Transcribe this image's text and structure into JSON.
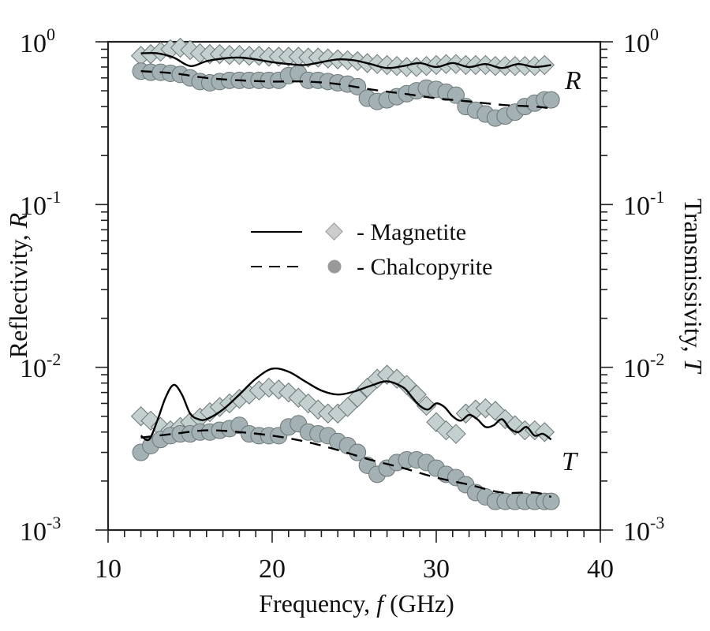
{
  "chart_data": {
    "type": "scatter",
    "title": "",
    "xlabel": "Frequency,  f (GHz)",
    "xlabel_parts": {
      "prefix": "Frequency,  ",
      "var": "f",
      "suffix": " (GHz)"
    },
    "ylabel_left": "Reflectivity, R",
    "ylabel_left_parts": {
      "prefix": "Reflectivity, ",
      "var": "R"
    },
    "ylabel_right": "Transmissivity, T",
    "ylabel_right_parts": {
      "prefix": "Transmissivity, ",
      "var": "T"
    },
    "xlim": [
      10,
      40
    ],
    "ylim": [
      0.001,
      1
    ],
    "yscale": "log",
    "x_ticks": [
      10,
      20,
      30,
      40
    ],
    "x_tick_labels": [
      "10",
      "20",
      "30",
      "40"
    ],
    "y_ticks": [
      {
        "base": "10",
        "exp": "-3"
      },
      {
        "base": "10",
        "exp": "-2"
      },
      {
        "base": "10",
        "exp": "-1"
      },
      {
        "base": "10",
        "exp": "0"
      }
    ],
    "grid": false,
    "annotations": [
      {
        "text": "R",
        "x": 38.6,
        "y": 0.55
      },
      {
        "text": "T",
        "x": 38.6,
        "y": 0.0018
      }
    ],
    "legend": {
      "placement": "center",
      "entries": [
        {
          "label": "- Magnetite",
          "line": "solid",
          "marker": "diamond"
        },
        {
          "label": "- Chalcopyrite",
          "line": "dashed",
          "marker": "circle"
        }
      ]
    },
    "colors": {
      "diamond_fill": "#c3d0cf",
      "circle_fill": "#a3b1b5",
      "marker_stroke": "#6b7677",
      "legend_diamond": "#cccccc",
      "legend_circle": "#999999",
      "line": "#000000"
    },
    "series": [
      {
        "name": "Magnetite R (measured)",
        "marker": "diamond",
        "x": [
          12.0,
          12.6,
          13.2,
          13.8,
          14.4,
          15.0,
          15.6,
          16.2,
          16.8,
          17.4,
          18.0,
          18.6,
          19.2,
          19.8,
          20.4,
          21.0,
          21.6,
          22.2,
          22.8,
          23.4,
          24.0,
          24.6,
          25.2,
          25.8,
          26.4,
          27.0,
          27.6,
          28.2,
          28.8,
          29.4,
          30.0,
          30.6,
          31.2,
          31.8,
          32.4,
          33.0,
          33.6,
          34.2,
          34.8,
          35.4,
          36.0,
          36.6
        ],
        "y": [
          0.82,
          0.84,
          0.87,
          0.9,
          0.92,
          0.89,
          0.85,
          0.84,
          0.84,
          0.83,
          0.83,
          0.82,
          0.82,
          0.81,
          0.81,
          0.81,
          0.81,
          0.8,
          0.8,
          0.79,
          0.78,
          0.77,
          0.76,
          0.74,
          0.73,
          0.72,
          0.71,
          0.7,
          0.7,
          0.71,
          0.72,
          0.73,
          0.73,
          0.72,
          0.72,
          0.72,
          0.71,
          0.71,
          0.71,
          0.71,
          0.71,
          0.72
        ]
      },
      {
        "name": "Chalcopyrite R (measured)",
        "marker": "circle",
        "x": [
          12.0,
          12.6,
          13.2,
          13.8,
          14.4,
          15.0,
          15.6,
          16.2,
          16.8,
          17.4,
          18.0,
          18.6,
          19.2,
          19.8,
          20.4,
          21.0,
          21.6,
          22.2,
          22.8,
          23.4,
          24.0,
          24.6,
          25.2,
          25.8,
          26.4,
          27.0,
          27.6,
          28.2,
          28.8,
          29.4,
          30.0,
          30.6,
          31.2,
          31.8,
          32.4,
          33.0,
          33.6,
          34.2,
          34.8,
          35.4,
          36.0,
          36.6,
          37.0
        ],
        "y": [
          0.66,
          0.65,
          0.65,
          0.64,
          0.63,
          0.6,
          0.57,
          0.56,
          0.57,
          0.58,
          0.58,
          0.58,
          0.58,
          0.58,
          0.58,
          0.62,
          0.64,
          0.58,
          0.58,
          0.57,
          0.56,
          0.55,
          0.53,
          0.45,
          0.43,
          0.44,
          0.46,
          0.48,
          0.5,
          0.52,
          0.51,
          0.49,
          0.47,
          0.4,
          0.38,
          0.36,
          0.34,
          0.35,
          0.37,
          0.4,
          0.42,
          0.44,
          0.44
        ]
      },
      {
        "name": "Magnetite R (model)",
        "line": "solid",
        "x": [
          12.0,
          13.0,
          14.0,
          15.0,
          16.0,
          17.0,
          18.0,
          19.0,
          20.0,
          21.0,
          22.0,
          23.0,
          24.0,
          25.0,
          26.0,
          27.0,
          28.0,
          29.0,
          30.0,
          31.0,
          32.0,
          33.0,
          34.0,
          35.0,
          36.0,
          37.0
        ],
        "y": [
          0.85,
          0.85,
          0.8,
          0.71,
          0.76,
          0.79,
          0.8,
          0.78,
          0.75,
          0.73,
          0.72,
          0.75,
          0.78,
          0.77,
          0.73,
          0.69,
          0.71,
          0.74,
          0.7,
          0.74,
          0.7,
          0.73,
          0.69,
          0.73,
          0.7,
          0.72
        ]
      },
      {
        "name": "Chalcopyrite R (model)",
        "line": "dashed",
        "x": [
          12.0,
          14.0,
          16.0,
          18.0,
          20.0,
          22.0,
          24.0,
          26.0,
          28.0,
          30.0,
          32.0,
          34.0,
          36.0,
          37.0
        ],
        "y": [
          0.66,
          0.64,
          0.6,
          0.58,
          0.57,
          0.57,
          0.55,
          0.51,
          0.48,
          0.45,
          0.43,
          0.41,
          0.4,
          0.39
        ]
      },
      {
        "name": "Magnetite T (measured)",
        "marker": "diamond",
        "x": [
          12.0,
          12.6,
          13.2,
          13.8,
          14.4,
          15.0,
          15.6,
          16.2,
          16.8,
          17.4,
          18.0,
          18.6,
          19.2,
          19.8,
          20.4,
          21.0,
          21.6,
          22.2,
          22.8,
          23.4,
          24.0,
          24.6,
          25.2,
          25.8,
          26.4,
          27.0,
          27.6,
          28.2,
          28.8,
          29.4,
          30.0,
          30.6,
          31.2,
          31.8,
          32.4,
          33.0,
          33.6,
          34.2,
          34.8,
          35.4,
          36.0,
          36.6
        ],
        "y": [
          0.005,
          0.0047,
          0.0043,
          0.0041,
          0.0043,
          0.0046,
          0.0049,
          0.0053,
          0.0057,
          0.006,
          0.0064,
          0.0068,
          0.0072,
          0.0075,
          0.0073,
          0.007,
          0.0065,
          0.006,
          0.0055,
          0.0052,
          0.0052,
          0.0057,
          0.0065,
          0.0075,
          0.0085,
          0.009,
          0.0085,
          0.0078,
          0.0068,
          0.0058,
          0.0046,
          0.0041,
          0.0039,
          0.0052,
          0.0055,
          0.0056,
          0.0054,
          0.0048,
          0.0044,
          0.0041,
          0.0041,
          0.004
        ]
      },
      {
        "name": "Chalcopyrite T (measured)",
        "marker": "circle",
        "x": [
          12.0,
          12.6,
          13.2,
          13.8,
          14.4,
          15.0,
          15.6,
          16.2,
          16.8,
          17.4,
          18.0,
          18.6,
          19.2,
          19.8,
          20.4,
          21.0,
          21.6,
          22.2,
          22.8,
          23.4,
          24.0,
          24.6,
          25.2,
          25.8,
          26.4,
          27.0,
          27.6,
          28.2,
          28.8,
          29.4,
          30.0,
          30.6,
          31.2,
          31.8,
          32.4,
          33.0,
          33.6,
          34.2,
          34.8,
          35.4,
          36.0,
          36.6,
          37.0
        ],
        "y": [
          0.003,
          0.0033,
          0.0036,
          0.0038,
          0.0039,
          0.0039,
          0.004,
          0.004,
          0.0041,
          0.0042,
          0.0044,
          0.0039,
          0.0038,
          0.0038,
          0.0038,
          0.0043,
          0.0045,
          0.004,
          0.0039,
          0.0038,
          0.0035,
          0.0033,
          0.003,
          0.0025,
          0.0022,
          0.0024,
          0.0026,
          0.0027,
          0.0027,
          0.0026,
          0.0024,
          0.0022,
          0.0021,
          0.0019,
          0.0017,
          0.0016,
          0.0015,
          0.0015,
          0.0015,
          0.0015,
          0.0015,
          0.0015,
          0.0015
        ]
      },
      {
        "name": "Magnetite T (model)",
        "line": "solid",
        "x": [
          12.0,
          12.5,
          13.0,
          13.5,
          14.0,
          14.5,
          15.0,
          15.5,
          16.0,
          17.0,
          18.0,
          19.0,
          20.0,
          21.0,
          22.0,
          23.0,
          24.0,
          25.0,
          26.0,
          27.0,
          28.0,
          28.5,
          29.0,
          29.5,
          30.0,
          30.5,
          31.0,
          31.5,
          32.0,
          32.5,
          33.0,
          33.5,
          34.0,
          34.5,
          35.0,
          35.5,
          36.0,
          36.5,
          37.0
        ],
        "y": [
          0.0038,
          0.0036,
          0.0047,
          0.0065,
          0.0078,
          0.0068,
          0.0052,
          0.0048,
          0.0048,
          0.0055,
          0.0068,
          0.0085,
          0.0098,
          0.0094,
          0.0082,
          0.0072,
          0.0068,
          0.0071,
          0.0077,
          0.0082,
          0.0075,
          0.0066,
          0.0058,
          0.0055,
          0.006,
          0.0057,
          0.005,
          0.0047,
          0.0051,
          0.0048,
          0.0043,
          0.0044,
          0.0048,
          0.0042,
          0.004,
          0.0043,
          0.0038,
          0.0039,
          0.0036
        ]
      },
      {
        "name": "Chalcopyrite T (model)",
        "line": "dashed",
        "x": [
          12.0,
          14.0,
          16.0,
          18.0,
          20.0,
          22.0,
          24.0,
          26.0,
          28.0,
          30.0,
          32.0,
          34.0,
          36.0,
          37.0
        ],
        "y": [
          0.0037,
          0.0039,
          0.0041,
          0.004,
          0.0038,
          0.0035,
          0.0031,
          0.0027,
          0.0024,
          0.0021,
          0.0019,
          0.0017,
          0.0017,
          0.0016
        ]
      }
    ]
  }
}
